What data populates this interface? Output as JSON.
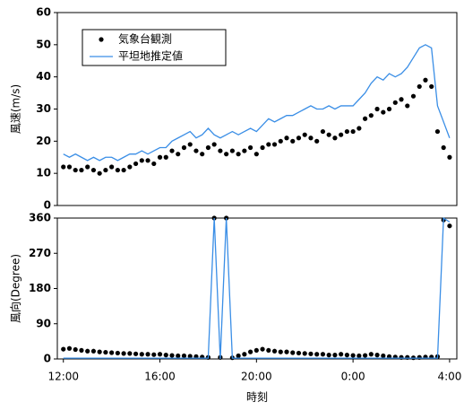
{
  "chart_data": [
    {
      "type": "wind-speed",
      "ylabel": "風速(m/s)",
      "ylim": [
        0,
        60
      ],
      "yticks": [
        0,
        10,
        20,
        30,
        40,
        50,
        60
      ],
      "xlim": [
        -0.25,
        16.3
      ],
      "legend": "upper left",
      "x": [
        0,
        0.25,
        0.5,
        0.75,
        1,
        1.25,
        1.5,
        1.75,
        2,
        2.25,
        2.5,
        2.75,
        3,
        3.25,
        3.5,
        3.75,
        4,
        4.25,
        4.5,
        4.75,
        5,
        5.25,
        5.5,
        5.75,
        6,
        6.25,
        6.5,
        6.75,
        7,
        7.25,
        7.5,
        7.75,
        8,
        8.25,
        8.5,
        8.75,
        9,
        9.25,
        9.5,
        9.75,
        10,
        10.25,
        10.5,
        10.75,
        11,
        11.25,
        11.5,
        11.75,
        12,
        12.25,
        12.5,
        12.75,
        13,
        13.25,
        13.5,
        13.75,
        14,
        14.25,
        14.5,
        14.75,
        15,
        15.25,
        15.5,
        15.75,
        16
      ],
      "series": [
        {
          "name": "気象台観測",
          "color": "#000000",
          "style": "marker",
          "values": [
            12,
            12,
            11,
            11,
            12,
            11,
            10,
            11,
            12,
            11,
            11,
            12,
            13,
            14,
            14,
            13,
            15,
            15,
            17,
            16,
            18,
            19,
            17,
            16,
            18,
            19,
            17,
            16,
            17,
            16,
            17,
            18,
            16,
            18,
            19,
            19,
            20,
            21,
            20,
            21,
            22,
            21,
            20,
            23,
            22,
            21,
            22,
            23,
            23,
            24,
            27,
            28,
            30,
            29,
            30,
            32,
            33,
            31,
            34,
            37,
            39,
            37,
            23,
            18,
            15
          ]
        },
        {
          "name": "平坦地推定値",
          "color": "#3a8ee6",
          "style": "line",
          "values": [
            16,
            15,
            16,
            15,
            14,
            15,
            14,
            15,
            15,
            14,
            15,
            16,
            16,
            17,
            16,
            17,
            18,
            18,
            20,
            21,
            22,
            23,
            21,
            22,
            24,
            22,
            21,
            22,
            23,
            22,
            23,
            24,
            23,
            25,
            27,
            26,
            27,
            28,
            28,
            29,
            30,
            31,
            30,
            30,
            31,
            30,
            31,
            31,
            31,
            33,
            35,
            38,
            40,
            39,
            41,
            40,
            41,
            43,
            46,
            49,
            50,
            49,
            31,
            26,
            21
          ]
        }
      ]
    },
    {
      "type": "wind-direction",
      "ylabel": "風向(Degree)",
      "xlabel": "時刻",
      "ylim": [
        0,
        360
      ],
      "yticks": [
        0,
        90,
        180,
        270,
        360
      ],
      "xlim": [
        -0.25,
        16.3
      ],
      "xticks": [
        {
          "value": 0,
          "label": "12:00"
        },
        {
          "value": 4,
          "label": "16:00"
        },
        {
          "value": 8,
          "label": "20:00"
        },
        {
          "value": 12,
          "label": "0:00"
        },
        {
          "value": 16,
          "label": "4:00"
        }
      ],
      "x": [
        0,
        0.25,
        0.5,
        0.75,
        1,
        1.25,
        1.5,
        1.75,
        2,
        2.25,
        2.5,
        2.75,
        3,
        3.25,
        3.5,
        3.75,
        4,
        4.25,
        4.5,
        4.75,
        5,
        5.25,
        5.5,
        5.75,
        6,
        6.25,
        6.5,
        6.75,
        7,
        7.25,
        7.5,
        7.75,
        8,
        8.25,
        8.5,
        8.75,
        9,
        9.25,
        9.5,
        9.75,
        10,
        10.25,
        10.5,
        10.75,
        11,
        11.25,
        11.5,
        11.75,
        12,
        12.25,
        12.5,
        12.75,
        13,
        13.25,
        13.5,
        13.75,
        14,
        14.25,
        14.5,
        14.75,
        15,
        15.25,
        15.5,
        15.75,
        16
      ],
      "series": [
        {
          "name": "気象台観測",
          "color": "#000000",
          "style": "marker",
          "values": [
            25,
            27,
            24,
            22,
            20,
            20,
            18,
            17,
            16,
            15,
            14,
            14,
            13,
            12,
            12,
            11,
            12,
            10,
            9,
            8,
            8,
            7,
            6,
            5,
            4,
            360,
            4,
            360,
            3,
            8,
            12,
            18,
            22,
            25,
            22,
            20,
            18,
            18,
            16,
            15,
            14,
            13,
            12,
            12,
            10,
            10,
            12,
            10,
            9,
            8,
            9,
            12,
            10,
            8,
            6,
            5,
            4,
            4,
            3,
            4,
            5,
            5,
            6,
            355,
            340
          ]
        },
        {
          "name": "平坦地推定値",
          "color": "#3a8ee6",
          "style": "line",
          "values": [
            2,
            2,
            2,
            2,
            2,
            2,
            2,
            2,
            2,
            2,
            2,
            2,
            2,
            2,
            2,
            2,
            2,
            2,
            2,
            2,
            2,
            2,
            2,
            2,
            2,
            360,
            0,
            360,
            2,
            2,
            2,
            2,
            2,
            2,
            2,
            2,
            2,
            2,
            2,
            2,
            2,
            2,
            2,
            2,
            2,
            2,
            2,
            2,
            2,
            2,
            2,
            2,
            2,
            2,
            2,
            2,
            2,
            2,
            2,
            2,
            2,
            2,
            2,
            360,
            350
          ]
        }
      ]
    }
  ]
}
